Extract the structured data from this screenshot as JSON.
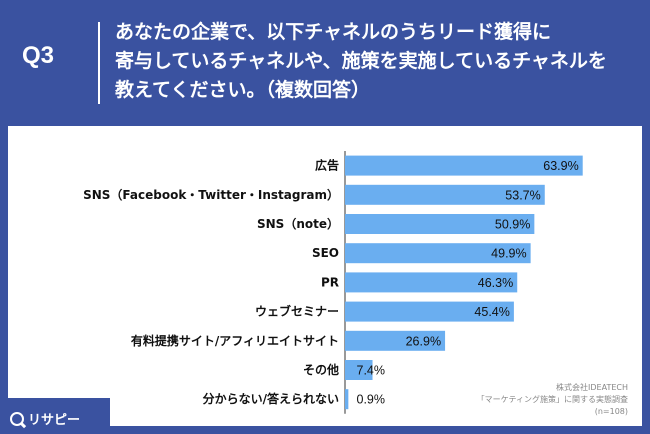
{
  "header": {
    "q_label": "Q3",
    "question": "あなたの企業で、以下チャネルのうちリード獲得に\n寄与しているチャネルや、施策を実施しているチャネルを\n教えてください。（複数回答）"
  },
  "source": {
    "line1": "株式会社IDEATECH",
    "line2": "「マーケティング施策」に関する実態調査",
    "line3": "(n=108)"
  },
  "logo": {
    "text": "リサピー"
  },
  "colors": {
    "bar": "#6aaef0",
    "background": "#3a52a0",
    "card": "#ffffff",
    "axis": "#333333"
  },
  "chart_data": {
    "type": "bar",
    "orientation": "horizontal",
    "categories": [
      "広告",
      "SNS（Facebook・Twitter・Instagram）",
      "SNS（note）",
      "SEO",
      "PR",
      "ウェブセミナー",
      "有料提携サイト/アフィリエイトサイト",
      "その他",
      "分からない/答えられない"
    ],
    "values": [
      63.9,
      53.7,
      50.9,
      49.9,
      46.3,
      45.4,
      26.9,
      7.4,
      0.9
    ],
    "value_labels": [
      "63.9%",
      "53.7%",
      "50.9%",
      "49.9%",
      "46.3%",
      "45.4%",
      "26.9%",
      "7.4%",
      "0.9%"
    ],
    "xlim": [
      0,
      100
    ],
    "grid": false,
    "legend": "none"
  }
}
